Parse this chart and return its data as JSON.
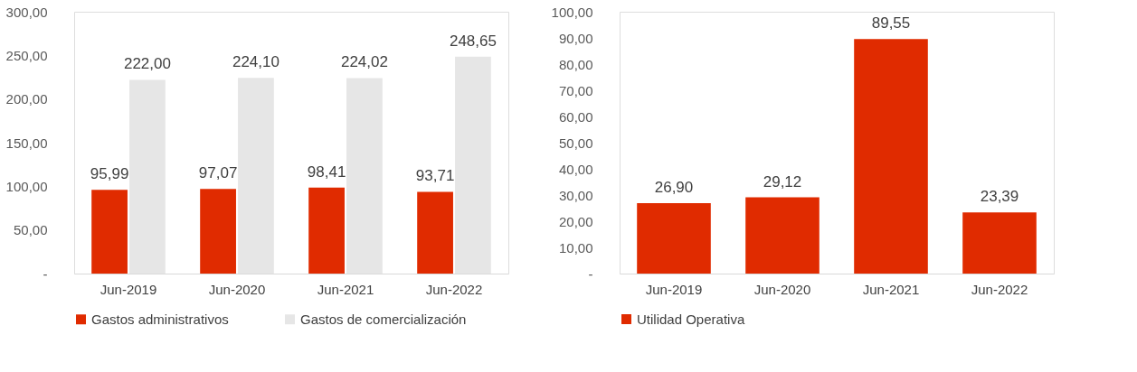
{
  "chart_data": [
    {
      "type": "bar",
      "categories": [
        "Jun-2019",
        "Jun-2020",
        "Jun-2021",
        "Jun-2022"
      ],
      "series": [
        {
          "name": "Gastos administrativos",
          "color": "#e02b00",
          "values": [
            95.99,
            97.07,
            98.41,
            93.71
          ],
          "value_labels": [
            "95,99",
            "97,07",
            "98,41",
            "93,71"
          ]
        },
        {
          "name": "Gastos de comercialización",
          "color": "#e6e6e6",
          "values": [
            222.0,
            224.1,
            224.02,
            248.65
          ],
          "value_labels": [
            "222,00",
            "224,10",
            "224,02",
            "248,65"
          ]
        }
      ],
      "ylim": [
        0,
        300
      ],
      "yticks": [
        {
          "value": 0,
          "label": "-"
        },
        {
          "value": 50,
          "label": "50,00"
        },
        {
          "value": 100,
          "label": "100,00"
        },
        {
          "value": 150,
          "label": "150,00"
        },
        {
          "value": 200,
          "label": "200,00"
        },
        {
          "value": 250,
          "label": "250,00"
        },
        {
          "value": 300,
          "label": "300,00"
        }
      ],
      "grid": false,
      "legend": "bottom left"
    },
    {
      "type": "bar",
      "categories": [
        "Jun-2019",
        "Jun-2020",
        "Jun-2021",
        "Jun-2022"
      ],
      "series": [
        {
          "name": "Utilidad Operativa",
          "color": "#e02b00",
          "values": [
            26.9,
            29.12,
            89.55,
            23.39
          ],
          "value_labels": [
            "26,90",
            "29,12",
            "89,55",
            "23,39"
          ]
        }
      ],
      "ylim": [
        0,
        100
      ],
      "yticks": [
        {
          "value": 0,
          "label": "-"
        },
        {
          "value": 10,
          "label": "10,00"
        },
        {
          "value": 20,
          "label": "20,00"
        },
        {
          "value": 30,
          "label": "30,00"
        },
        {
          "value": 40,
          "label": "40,00"
        },
        {
          "value": 50,
          "label": "50,00"
        },
        {
          "value": 60,
          "label": "60,00"
        },
        {
          "value": 70,
          "label": "70,00"
        },
        {
          "value": 80,
          "label": "80,00"
        },
        {
          "value": 90,
          "label": "90,00"
        },
        {
          "value": 100,
          "label": "100,00"
        }
      ],
      "grid": false,
      "legend": "bottom left"
    }
  ]
}
